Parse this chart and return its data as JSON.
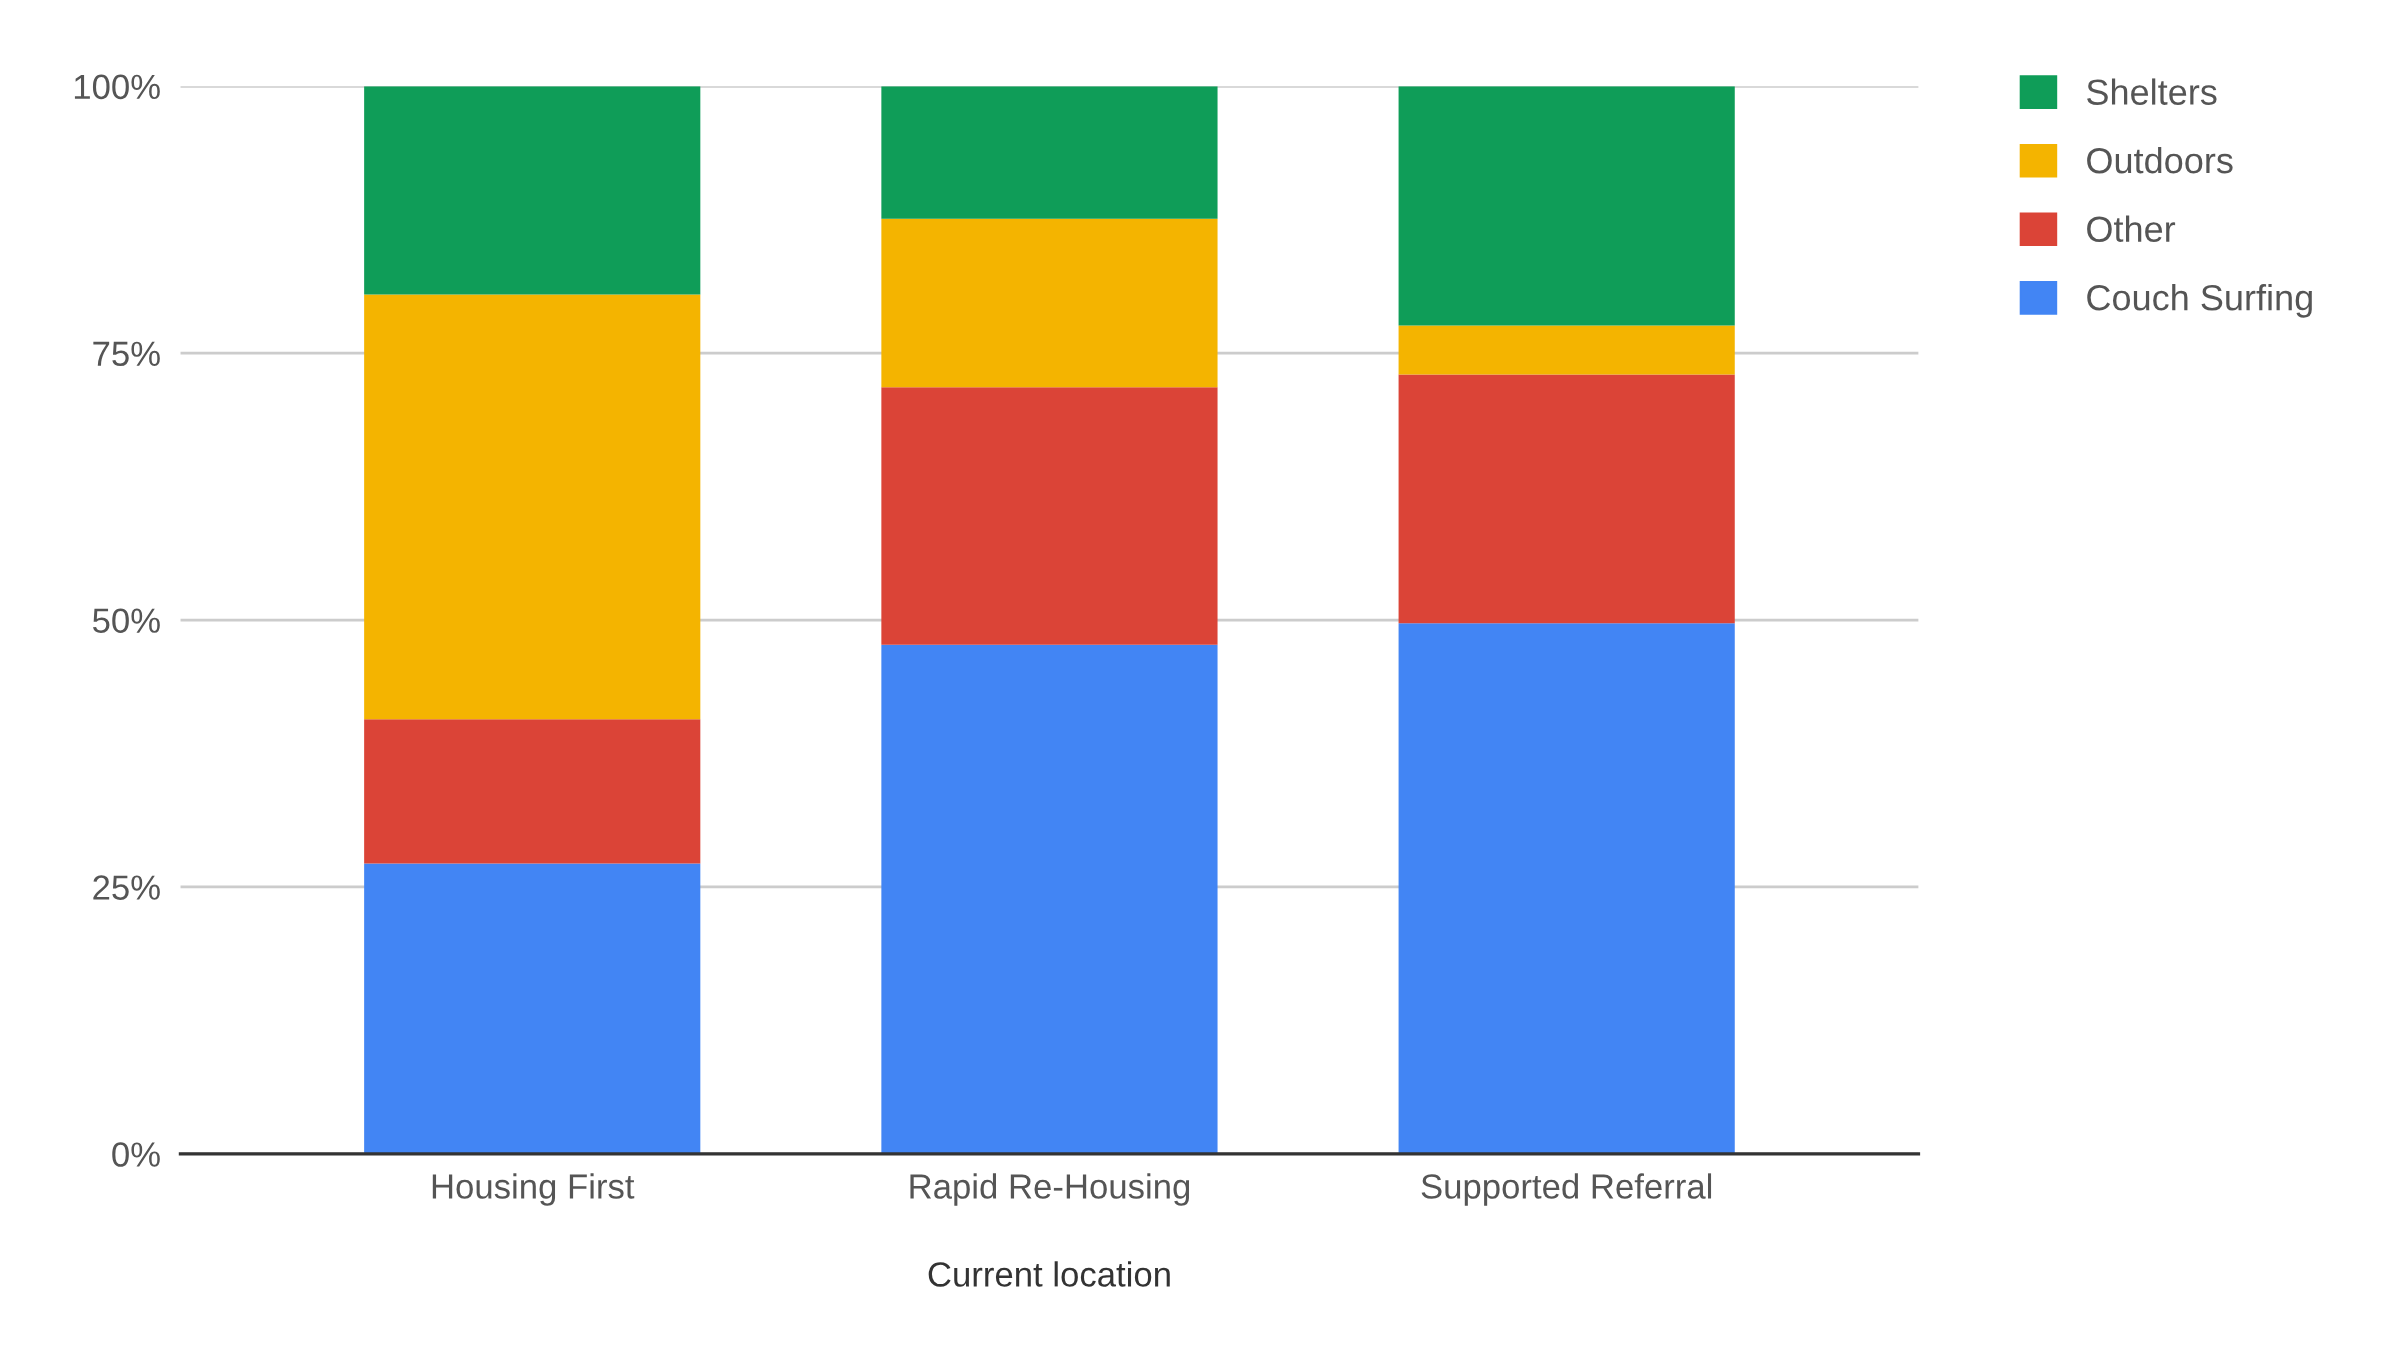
{
  "chart_data": {
    "type": "bar",
    "stacked": true,
    "xlabel": "Current location",
    "categories": [
      "Housing First",
      "Rapid Re-Housing",
      "Supported Referral"
    ],
    "series": [
      {
        "name": "Couch Surfing",
        "color": "#4285f4",
        "values": [
          27.2,
          47.7,
          49.7
        ]
      },
      {
        "name": "Other",
        "color": "#db4437",
        "values": [
          13.5,
          24.1,
          23.3
        ]
      },
      {
        "name": "Outdoors",
        "color": "#f4b400",
        "values": [
          39.8,
          15.8,
          4.6
        ]
      },
      {
        "name": "Shelters",
        "color": "#0f9d58",
        "values": [
          19.5,
          12.4,
          22.4
        ]
      }
    ],
    "ylim": [
      0,
      100
    ],
    "yticks": [
      {
        "value": 0,
        "label": "0%"
      },
      {
        "value": 25,
        "label": "25%"
      },
      {
        "value": 50,
        "label": "50%"
      },
      {
        "value": 75,
        "label": "75%"
      },
      {
        "value": 100,
        "label": "100%"
      }
    ],
    "grid": "y",
    "legend": "top right"
  }
}
